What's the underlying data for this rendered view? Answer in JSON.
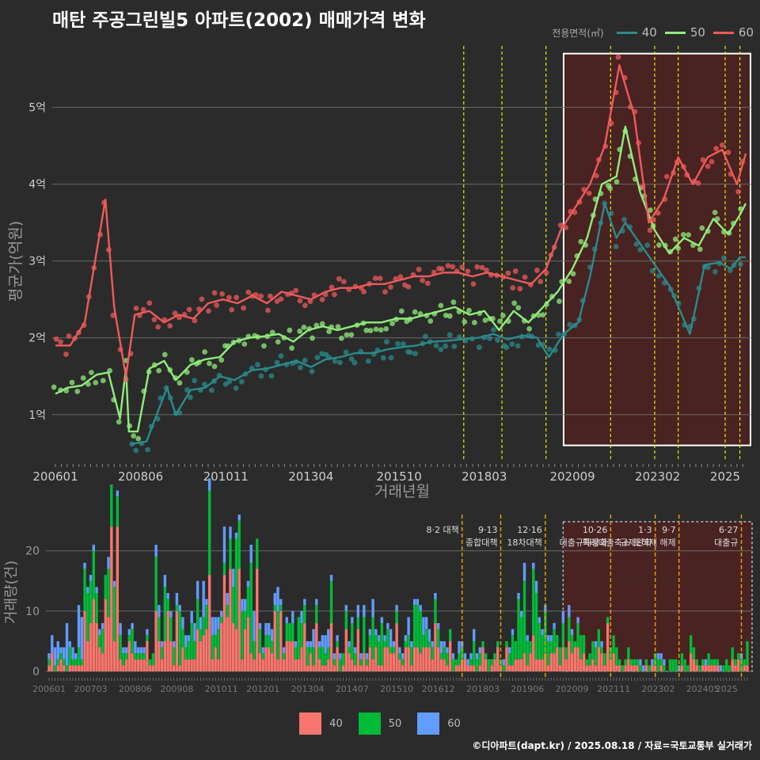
{
  "title": "매탄 주공그린빌5 아파트(2002) 매매가격 변화",
  "credit": "©디아파트(dapt.kr) / 2025.08.18 / 자료=국토교통부 실거래가",
  "legend": {
    "title": "전용면적(㎡)",
    "items": [
      {
        "label": "40",
        "line_color": "#2a8b8b",
        "bar_color": "#f8766d"
      },
      {
        "label": "50",
        "line_color": "#90ee7a",
        "bar_color": "#00ba38"
      },
      {
        "label": "60",
        "line_color": "#f05a5a",
        "bar_color": "#619cff"
      }
    ]
  },
  "chart_data": [
    {
      "type": "line",
      "title": "매탄 주공그린빌5 아파트(2002) 매매가격 변화",
      "xlabel": "거래년월",
      "ylabel": "평균가(억원)",
      "x_ticks": [
        "200601",
        "200806",
        "201011",
        "201304",
        "201510",
        "201803",
        "202009",
        "202302",
        "2025"
      ],
      "y_ticks": [
        "1억",
        "2억",
        "3억",
        "4억",
        "5억"
      ],
      "ylim": [
        0.4,
        5.8
      ],
      "grid": true,
      "highlight_period": [
        "2020-06",
        "2025-08"
      ],
      "policy_lines": [
        "2017-08",
        "2018-09",
        "2019-12",
        "2021-10",
        "2023-01",
        "2023-09",
        "2025-01",
        "2025-06"
      ],
      "series": [
        {
          "name": "40",
          "color": "#2a8b8b",
          "points": [
            [
              "2008-03",
              0.62
            ],
            [
              "2008-08",
              0.65
            ],
            [
              "2009-03",
              1.35
            ],
            [
              "2009-06",
              1.0
            ],
            [
              "2009-11",
              1.32
            ],
            [
              "2010-04",
              1.35
            ],
            [
              "2010-09",
              1.5
            ],
            [
              "2011-02",
              1.45
            ],
            [
              "2011-08",
              1.58
            ],
            [
              "2012-01",
              1.6
            ],
            [
              "2012-06",
              1.65
            ],
            [
              "2012-11",
              1.7
            ],
            [
              "2013-04",
              1.62
            ],
            [
              "2013-09",
              1.72
            ],
            [
              "2014-02",
              1.75
            ],
            [
              "2014-07",
              1.8
            ],
            [
              "2015-01",
              1.8
            ],
            [
              "2015-06",
              1.85
            ],
            [
              "2015-11",
              1.88
            ],
            [
              "2016-04",
              1.9
            ],
            [
              "2016-09",
              1.95
            ],
            [
              "2017-02",
              1.96
            ],
            [
              "2017-07",
              1.98
            ],
            [
              "2018-01",
              2.0
            ],
            [
              "2018-06",
              2.05
            ],
            [
              "2018-11",
              1.98
            ],
            [
              "2019-04",
              2.03
            ],
            [
              "2019-09",
              2.0
            ],
            [
              "2020-01",
              1.75
            ],
            [
              "2020-06",
              2.05
            ],
            [
              "2020-11",
              2.2
            ],
            [
              "2021-03",
              2.8
            ],
            [
              "2021-08",
              3.75
            ],
            [
              "2021-12",
              3.3
            ],
            [
              "2022-03",
              3.5
            ],
            [
              "2023-06",
              2.68
            ],
            [
              "2024-01",
              2.05
            ],
            [
              "2024-06",
              2.95
            ],
            [
              "2024-11",
              2.98
            ],
            [
              "2025-03",
              2.9
            ],
            [
              "2025-06",
              3.05
            ],
            [
              "2025-08",
              3.05
            ]
          ]
        },
        {
          "name": "50",
          "color": "#90ee7a",
          "points": [
            [
              "2006-01",
              1.27
            ],
            [
              "2006-05",
              1.35
            ],
            [
              "2006-10",
              1.38
            ],
            [
              "2007-03",
              1.52
            ],
            [
              "2007-07",
              1.55
            ],
            [
              "2007-11",
              0.95
            ],
            [
              "2008-01",
              1.6
            ],
            [
              "2008-02",
              0.78
            ],
            [
              "2008-05",
              0.78
            ],
            [
              "2008-09",
              1.6
            ],
            [
              "2009-02",
              1.7
            ],
            [
              "2009-06",
              1.45
            ],
            [
              "2009-11",
              1.65
            ],
            [
              "2010-04",
              1.72
            ],
            [
              "2010-09",
              1.75
            ],
            [
              "2011-02",
              1.95
            ],
            [
              "2011-07",
              2.0
            ],
            [
              "2011-12",
              2.02
            ],
            [
              "2012-05",
              2.05
            ],
            [
              "2012-10",
              1.95
            ],
            [
              "2013-03",
              2.1
            ],
            [
              "2013-08",
              2.15
            ],
            [
              "2014-01",
              2.1
            ],
            [
              "2014-06",
              2.15
            ],
            [
              "2014-11",
              2.2
            ],
            [
              "2015-04",
              2.2
            ],
            [
              "2015-09",
              2.25
            ],
            [
              "2016-02",
              2.25
            ],
            [
              "2016-07",
              2.3
            ],
            [
              "2016-12",
              2.35
            ],
            [
              "2017-05",
              2.4
            ],
            [
              "2017-10",
              2.3
            ],
            [
              "2018-03",
              2.35
            ],
            [
              "2018-08",
              2.1
            ],
            [
              "2019-01",
              2.35
            ],
            [
              "2019-06",
              2.2
            ],
            [
              "2019-11",
              2.4
            ],
            [
              "2020-04",
              2.6
            ],
            [
              "2020-09",
              2.9
            ],
            [
              "2021-02",
              3.3
            ],
            [
              "2021-07",
              4.0
            ],
            [
              "2021-12",
              4.1
            ],
            [
              "2022-03",
              4.75
            ],
            [
              "2022-08",
              3.9
            ],
            [
              "2023-01",
              3.4
            ],
            [
              "2023-06",
              3.1
            ],
            [
              "2023-11",
              3.3
            ],
            [
              "2024-04",
              3.2
            ],
            [
              "2024-09",
              3.55
            ],
            [
              "2025-02",
              3.35
            ],
            [
              "2025-06",
              3.6
            ],
            [
              "2025-08",
              3.75
            ]
          ]
        },
        {
          "name": "60",
          "color": "#f05a5a",
          "points": [
            [
              "2006-01",
              1.9
            ],
            [
              "2006-06",
              1.9
            ],
            [
              "2006-11",
              2.2
            ],
            [
              "2007-06",
              3.8
            ],
            [
              "2007-09",
              2.4
            ],
            [
              "2008-01",
              1.5
            ],
            [
              "2008-04",
              2.3
            ],
            [
              "2008-09",
              2.35
            ],
            [
              "2009-02",
              2.2
            ],
            [
              "2009-07",
              2.3
            ],
            [
              "2009-12",
              2.25
            ],
            [
              "2010-05",
              2.45
            ],
            [
              "2010-10",
              2.5
            ],
            [
              "2011-03",
              2.45
            ],
            [
              "2011-08",
              2.55
            ],
            [
              "2012-01",
              2.45
            ],
            [
              "2012-06",
              2.6
            ],
            [
              "2012-11",
              2.55
            ],
            [
              "2013-04",
              2.5
            ],
            [
              "2013-09",
              2.6
            ],
            [
              "2014-02",
              2.65
            ],
            [
              "2014-07",
              2.65
            ],
            [
              "2014-12",
              2.7
            ],
            [
              "2015-05",
              2.7
            ],
            [
              "2015-10",
              2.75
            ],
            [
              "2016-03",
              2.8
            ],
            [
              "2016-08",
              2.8
            ],
            [
              "2017-01",
              2.85
            ],
            [
              "2017-06",
              2.85
            ],
            [
              "2017-11",
              2.8
            ],
            [
              "2018-04",
              2.85
            ],
            [
              "2018-09",
              2.8
            ],
            [
              "2019-02",
              2.75
            ],
            [
              "2019-07",
              2.7
            ],
            [
              "2019-12",
              2.9
            ],
            [
              "2020-05",
              3.4
            ],
            [
              "2020-10",
              3.7
            ],
            [
              "2021-03",
              4.0
            ],
            [
              "2021-08",
              4.5
            ],
            [
              "2022-01",
              5.55
            ],
            [
              "2022-06",
              4.9
            ],
            [
              "2022-11",
              3.5
            ],
            [
              "2023-04",
              3.8
            ],
            [
              "2023-09",
              4.35
            ],
            [
              "2024-02",
              4.0
            ],
            [
              "2024-07",
              4.35
            ],
            [
              "2024-12",
              4.45
            ],
            [
              "2025-05",
              4.0
            ],
            [
              "2025-08",
              4.4
            ]
          ]
        }
      ]
    },
    {
      "type": "bar",
      "title": "",
      "xlabel": "",
      "ylabel": "거래량(건)",
      "stacked": true,
      "x_ticks": [
        "200601",
        "200703",
        "200806",
        "200908",
        "201011",
        "201201",
        "201304",
        "201407",
        "201510",
        "201612",
        "201803",
        "201906",
        "202009",
        "202111",
        "202302",
        "202405",
        "2025"
      ],
      "y_ticks": [
        "0",
        "10",
        "20"
      ],
      "ylim": [
        0,
        26
      ],
      "highlight_period": [
        "2020-06",
        "2025-08"
      ],
      "policy_annotations": [
        {
          "date": "2017-08",
          "lines": [
            "8·2 대책"
          ]
        },
        {
          "date": "2018-09",
          "lines": [
            "9·13",
            "종합대책"
          ]
        },
        {
          "date": "2019-12",
          "lines": [
            "12·16",
            "18차대책"
          ]
        },
        {
          "date": "2021-10",
          "lines": [
            "10·26",
            "대출규제강화"
          ]
        },
        {
          "date": "2023-01",
          "lines": [
            "1·3",
            "규제완화"
          ]
        },
        {
          "date": "2023-09",
          "lines": [
            "9·7",
            "특례대출축소 토허제 해제"
          ]
        },
        {
          "date": "2025-06",
          "lines": [
            "6·27",
            "대출규"
          ]
        }
      ],
      "series": [
        {
          "name": "40",
          "color": "#f8766d",
          "totals_by_year": {
            "2006": 3,
            "2007": 24,
            "2008": 5,
            "2009": 10,
            "2010": 16,
            "2011": 17,
            "2012": 10,
            "2013": 8,
            "2014": 7,
            "2015": 8,
            "2016": 8,
            "2017": 5,
            "2018": 4,
            "2019": 6,
            "2020": 10,
            "2021": 8,
            "2022": 2,
            "2023": 2,
            "2024": 3,
            "2025": 3
          }
        },
        {
          "name": "50",
          "color": "#00ba38",
          "totals_by_year": {
            "2006": 3,
            "2007": 19,
            "2008": 4,
            "2009": 9,
            "2010": 14,
            "2011": 15,
            "2012": 8,
            "2013": 7,
            "2014": 6,
            "2015": 7,
            "2016": 7,
            "2017": 4,
            "2018": 4,
            "2019": 23,
            "2020": 9,
            "2021": 7,
            "2022": 2,
            "2023": 2,
            "2024": 3,
            "2025": 4
          }
        },
        {
          "name": "60",
          "color": "#619cff",
          "totals_by_year": {
            "2006": 7,
            "2007": 3,
            "2008": 2,
            "2009": 4,
            "2010": 6,
            "2011": 5,
            "2012": 4,
            "2013": 3,
            "2014": 3,
            "2015": 3,
            "2016": 3,
            "2017": 2,
            "2018": 1,
            "2019": 3,
            "2020": 2,
            "2021": 1,
            "2022": 1,
            "2023": 1,
            "2024": 1,
            "2025": 1
          }
        }
      ]
    }
  ]
}
